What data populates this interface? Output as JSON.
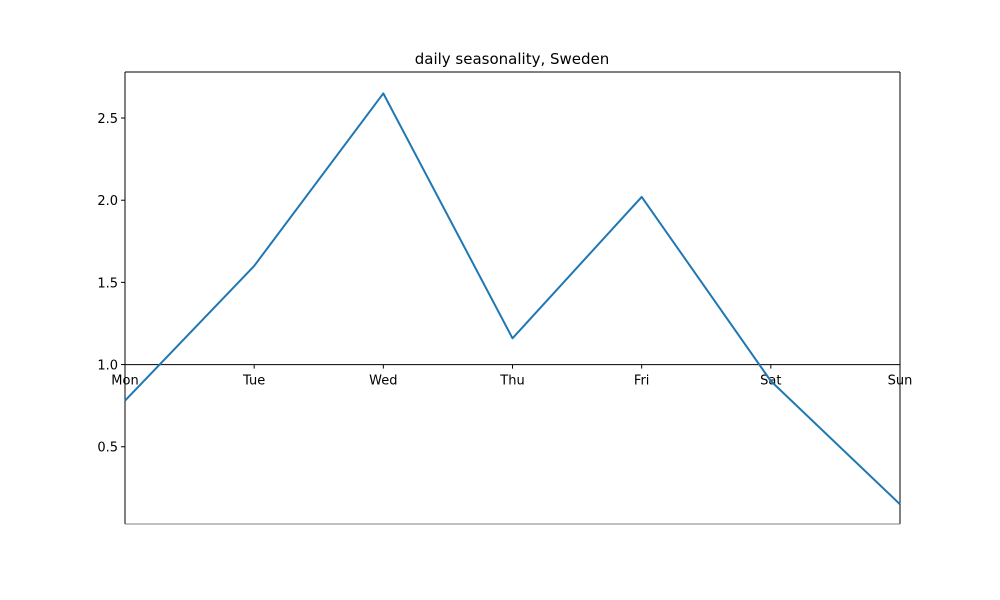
{
  "chart_data": {
    "type": "line",
    "title": "daily seasonality, Sweden",
    "xlabel": "",
    "ylabel": "",
    "categories": [
      "Mon",
      "Tue",
      "Wed",
      "Thu",
      "Fri",
      "Sat",
      "Sun"
    ],
    "series": [
      {
        "values": [
          0.78,
          1.6,
          2.65,
          1.16,
          2.02,
          0.9,
          0.15
        ],
        "color": "#1f77b4"
      }
    ],
    "yticks": [
      "0.5",
      "1.0",
      "1.5",
      "2.0",
      "2.5"
    ],
    "ylim": [
      0.03,
      2.78
    ],
    "x_axis_crosses_at": 1.0,
    "grid": false,
    "legend": "none"
  }
}
